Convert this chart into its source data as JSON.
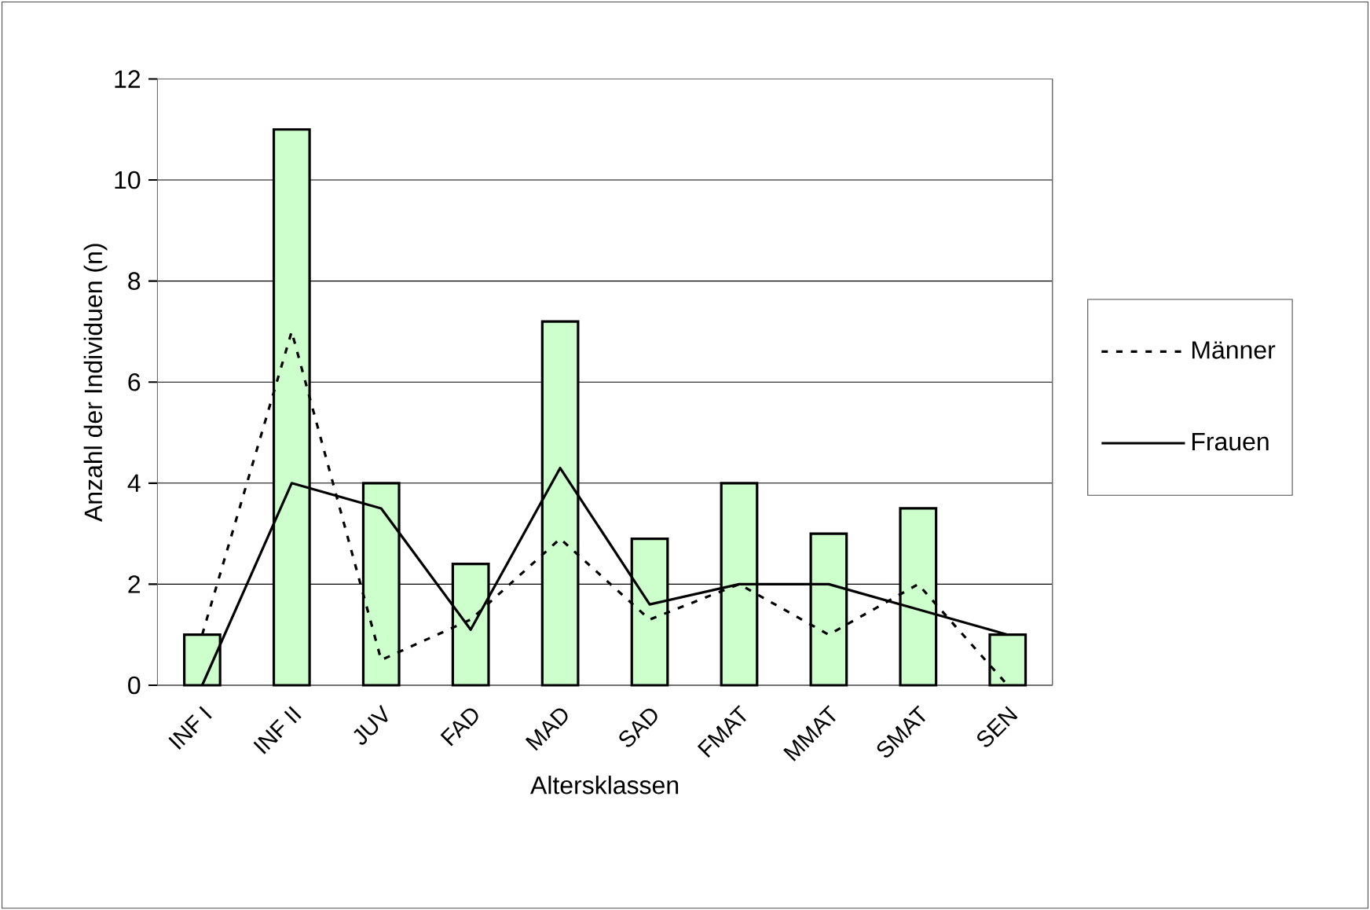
{
  "chart_data": {
    "type": "line",
    "xlabel": "Altersklassen",
    "ylabel": "Anzahl der Individuen (n)",
    "categories": [
      "INF I",
      "INF II",
      "JUV",
      "FAD",
      "MAD",
      "SAD",
      "FMAT",
      "MMAT",
      "SMAT",
      "SEN"
    ],
    "series": [
      {
        "type": "bar",
        "color": "#ccffcc",
        "values": [
          1,
          11,
          4,
          2.4,
          7.2,
          2.9,
          4,
          3,
          3.5,
          1
        ]
      },
      {
        "name": "Männer",
        "color": "#000000",
        "line_style": "dashed",
        "values": [
          1,
          7,
          0.5,
          1.3,
          2.9,
          1.3,
          2,
          1,
          2,
          0
        ]
      },
      {
        "name": "Frauen",
        "color": "#000000",
        "line_style": "solid",
        "values": [
          0,
          4,
          3.5,
          1.1,
          4.3,
          1.6,
          2,
          2,
          1.5,
          1
        ]
      }
    ],
    "ylim": [
      0,
      12
    ],
    "yticks": [
      0,
      2,
      4,
      6,
      8,
      10,
      12
    ],
    "grid": "y",
    "legend": "right",
    "marker": "none"
  }
}
